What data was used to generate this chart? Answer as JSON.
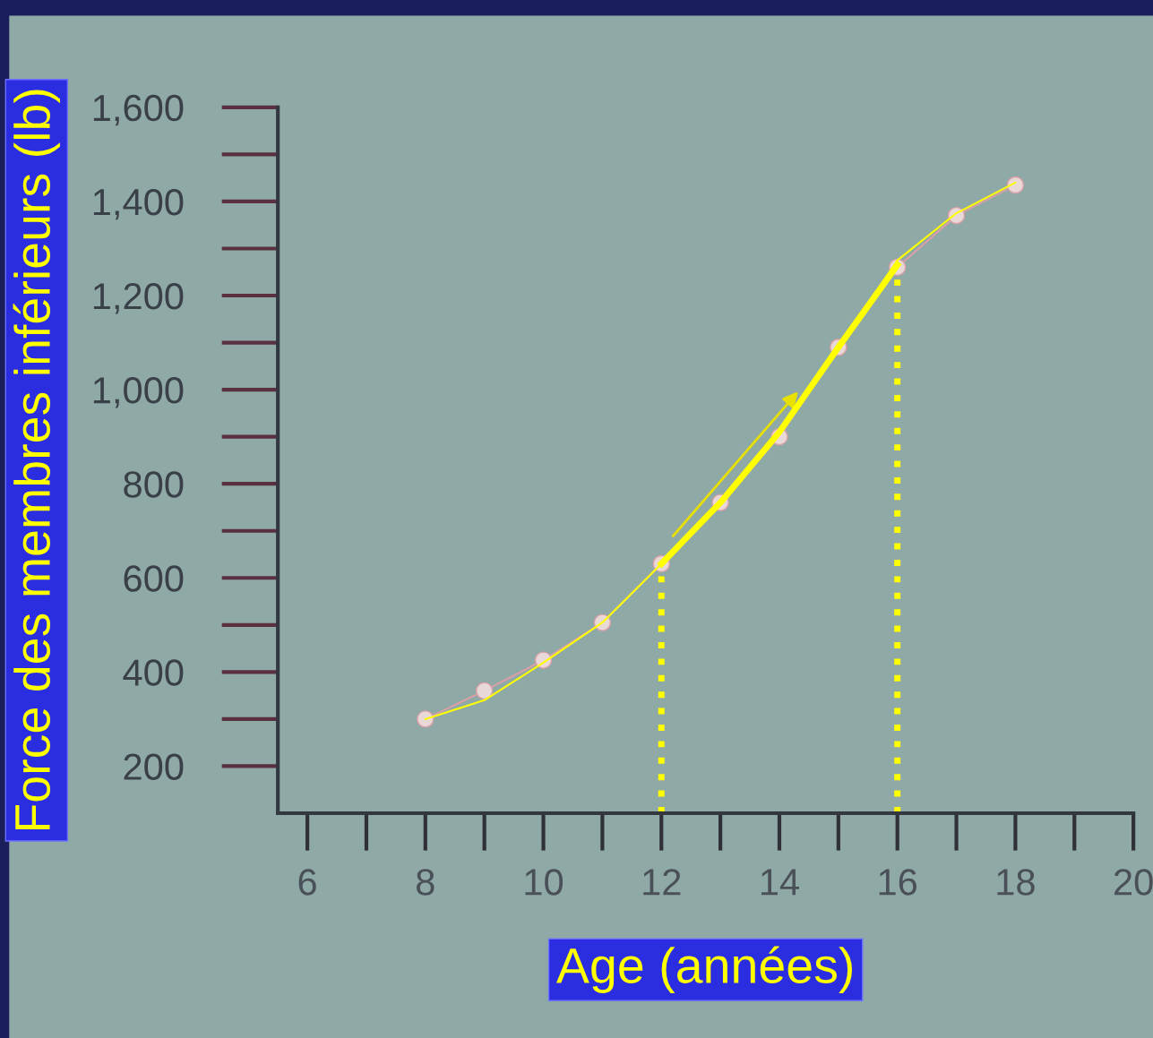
{
  "chart_data": {
    "type": "line",
    "xlabel": "Age (années)",
    "ylabel": "Force des membres inférieurs (lb)",
    "x": [
      8,
      9,
      10,
      11,
      12,
      13,
      14,
      15,
      16,
      17,
      18
    ],
    "series": [
      {
        "color": "#d9a0a8",
        "values": [
          300,
          360,
          425,
          505,
          630,
          760,
          900,
          1090,
          1260,
          1370,
          1435
        ],
        "marker": "circle"
      },
      {
        "color": "#ffff00",
        "values": [
          300,
          340,
          420,
          505,
          630,
          760,
          910,
          1090,
          1275,
          1375,
          1440
        ],
        "marker": "none"
      },
      {
        "color": "#ffff00",
        "x": [
          12,
          13,
          14,
          15,
          16
        ],
        "values": [
          630,
          760,
          910,
          1090,
          1265
        ],
        "marker": "none"
      }
    ],
    "xlim": [
      5.5,
      20
    ],
    "ylim": [
      100,
      1600
    ],
    "xticks": [
      6,
      8,
      10,
      12,
      14,
      16,
      18,
      20
    ],
    "yticks": [
      200,
      400,
      600,
      800,
      {
        "value": 1000,
        "label": "1,000"
      },
      {
        "value": 1200,
        "label": "1,200"
      },
      {
        "value": 1400,
        "label": "1,400"
      },
      {
        "value": 1600,
        "label": "1,600"
      }
    ],
    "ref_lines": [
      {
        "axis": "x",
        "value": 12,
        "color": "#ffff00",
        "line_style": "dotted"
      },
      {
        "axis": "x",
        "value": 16,
        "color": "#ffff00",
        "line_style": "dotted"
      }
    ],
    "grid": false,
    "legend": false
  }
}
